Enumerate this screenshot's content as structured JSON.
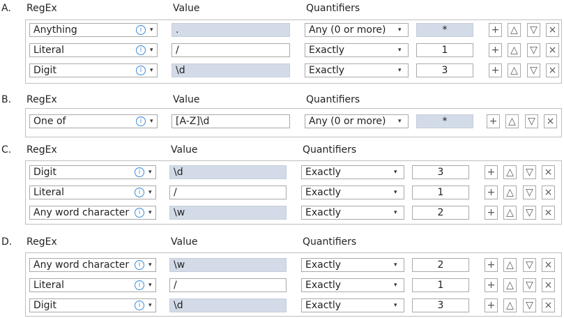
{
  "headers": {
    "regex": "RegEx",
    "value": "Value",
    "quantifiers": "Quantifiers"
  },
  "shade_color": "#d3dbe8",
  "icons": {
    "info": "info-icon",
    "dropdown": "chevron-down-icon",
    "add": "plus-icon",
    "up": "triangle-up-icon",
    "down": "triangle-down-icon",
    "remove": "x-icon"
  },
  "button_glyphs": {
    "add": "+",
    "up": "△",
    "down": "▽",
    "remove": "×"
  },
  "info_glyph": "i",
  "caret_glyph": "▾",
  "sections": [
    {
      "letter": "A.",
      "rows": [
        {
          "regex": "Anything",
          "value": ".",
          "value_shaded": true,
          "quantifier": "Any (0 or more)",
          "count": "*",
          "count_shaded": true
        },
        {
          "regex": "Literal",
          "value": "/",
          "value_shaded": false,
          "quantifier": "Exactly",
          "count": "1",
          "count_shaded": false
        },
        {
          "regex": "Digit",
          "value": "\\d",
          "value_shaded": true,
          "quantifier": "Exactly",
          "count": "3",
          "count_shaded": false
        }
      ]
    },
    {
      "letter": "B.",
      "rows": [
        {
          "regex": "One of",
          "value": "[A-Z]\\d",
          "value_shaded": false,
          "quantifier": "Any (0 or more)",
          "count": "*",
          "count_shaded": true
        }
      ]
    },
    {
      "letter": "C.",
      "rows": [
        {
          "regex": "Digit",
          "value": "\\d",
          "value_shaded": true,
          "quantifier": "Exactly",
          "count": "3",
          "count_shaded": false
        },
        {
          "regex": "Literal",
          "value": "/",
          "value_shaded": false,
          "quantifier": "Exactly",
          "count": "1",
          "count_shaded": false
        },
        {
          "regex": "Any word character",
          "value": "\\w",
          "value_shaded": true,
          "quantifier": "Exactly",
          "count": "2",
          "count_shaded": false
        }
      ]
    },
    {
      "letter": "D.",
      "rows": [
        {
          "regex": "Any word character",
          "value": "\\w",
          "value_shaded": true,
          "quantifier": "Exactly",
          "count": "2",
          "count_shaded": false
        },
        {
          "regex": "Literal",
          "value": "/",
          "value_shaded": false,
          "quantifier": "Exactly",
          "count": "1",
          "count_shaded": false
        },
        {
          "regex": "Digit",
          "value": "\\d",
          "value_shaded": true,
          "quantifier": "Exactly",
          "count": "3",
          "count_shaded": false
        }
      ]
    }
  ]
}
